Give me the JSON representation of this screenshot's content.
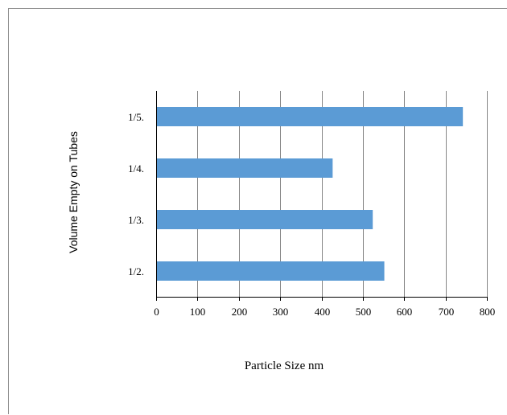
{
  "chart_data": {
    "type": "bar",
    "orientation": "horizontal",
    "categories": [
      "1/2.",
      "1/3.",
      "1/4.",
      "1/5."
    ],
    "values": [
      550,
      522,
      425,
      740
    ],
    "xlabel": "Particle Size nm",
    "ylabel": "Volume Empty on Tubes",
    "xlim": [
      0,
      800
    ],
    "xticks": [
      "0",
      "100",
      "200",
      "300",
      "400",
      "500",
      "600",
      "700",
      "800"
    ],
    "grid": true,
    "legend": "none",
    "colors": {
      "bar": "#5b9bd5",
      "grid": "#878787",
      "axis": "#000000"
    }
  }
}
